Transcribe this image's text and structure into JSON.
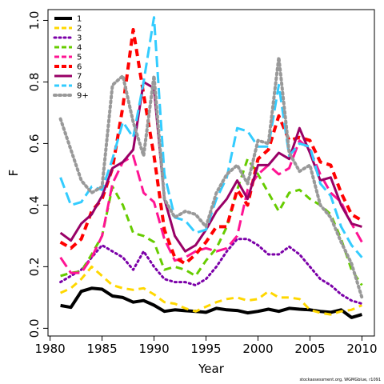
{
  "chart_data": {
    "type": "line",
    "xlabel": "Year",
    "ylabel": "F",
    "xlim": [
      1981,
      2010
    ],
    "ylim": [
      0,
      1.0
    ],
    "xticks": [
      1980,
      1985,
      1990,
      1995,
      2000,
      2005,
      2010
    ],
    "yticks": [
      0.0,
      0.2,
      0.4,
      0.6,
      0.8,
      1.0
    ],
    "xtick_labels": [
      "1980",
      "1985",
      "1990",
      "1995",
      "2000",
      "2005",
      "2010"
    ],
    "ytick_labels": [
      "0.0",
      "0.2",
      "0.4",
      "0.6",
      "0.8",
      "1.0"
    ],
    "grid": false,
    "legend_position": "top-left",
    "footnote": "stockassessment.org, WGMGblue, r1091",
    "x": [
      1981,
      1982,
      1983,
      1984,
      1985,
      1986,
      1987,
      1988,
      1989,
      1990,
      1991,
      1992,
      1993,
      1994,
      1995,
      1996,
      1997,
      1998,
      1999,
      2000,
      2001,
      2002,
      2003,
      2004,
      2005,
      2006,
      2007,
      2008,
      2009,
      2010
    ],
    "series": [
      {
        "name": "1",
        "color": "#000000",
        "dash": "solid",
        "width": 4,
        "values": [
          0.074,
          0.068,
          0.12,
          0.13,
          0.127,
          0.105,
          0.1,
          0.085,
          0.09,
          0.075,
          0.055,
          0.06,
          0.057,
          0.055,
          0.052,
          0.065,
          0.06,
          0.058,
          0.05,
          0.055,
          0.062,
          0.055,
          0.065,
          0.062,
          0.06,
          0.055,
          0.052,
          0.06,
          0.035,
          0.045
        ]
      },
      {
        "name": "2",
        "color": "#FFD700",
        "dash": "dashed",
        "width": 3,
        "values": [
          0.115,
          0.13,
          0.16,
          0.2,
          0.17,
          0.14,
          0.13,
          0.125,
          0.13,
          0.11,
          0.085,
          0.08,
          0.065,
          0.055,
          0.07,
          0.085,
          0.095,
          0.1,
          0.09,
          0.095,
          0.12,
          0.1,
          0.1,
          0.095,
          0.06,
          0.05,
          0.045,
          0.055,
          0.06,
          0.075
        ]
      },
      {
        "name": "3",
        "color": "#7B00A8",
        "dash": "dotted",
        "width": 3,
        "values": [
          0.15,
          0.17,
          0.19,
          0.23,
          0.27,
          0.25,
          0.23,
          0.19,
          0.25,
          0.2,
          0.16,
          0.15,
          0.15,
          0.14,
          0.16,
          0.2,
          0.25,
          0.29,
          0.29,
          0.27,
          0.24,
          0.24,
          0.265,
          0.24,
          0.2,
          0.16,
          0.14,
          0.11,
          0.09,
          0.08
        ]
      },
      {
        "name": "4",
        "color": "#66CC00",
        "dash": "dashed",
        "width": 3,
        "values": [
          0.17,
          0.18,
          0.185,
          0.24,
          0.3,
          0.46,
          0.4,
          0.31,
          0.3,
          0.28,
          0.19,
          0.2,
          0.19,
          0.17,
          0.22,
          0.26,
          0.33,
          0.45,
          0.55,
          0.5,
          0.44,
          0.38,
          0.44,
          0.45,
          0.42,
          0.4,
          0.37,
          0.29,
          0.19,
          0.14
        ]
      },
      {
        "name": "5",
        "color": "#FF1493",
        "dash": "longdash",
        "width": 3,
        "values": [
          0.23,
          0.18,
          0.18,
          0.23,
          0.3,
          0.47,
          0.54,
          0.56,
          0.44,
          0.41,
          0.29,
          0.22,
          0.23,
          0.25,
          0.26,
          0.25,
          0.26,
          0.3,
          0.45,
          0.5,
          0.53,
          0.5,
          0.52,
          0.61,
          0.58,
          0.5,
          0.44,
          0.41,
          0.34,
          0.28
        ]
      },
      {
        "name": "6",
        "color": "#FF0000",
        "dash": "dashed",
        "width": 4,
        "values": [
          0.28,
          0.26,
          0.29,
          0.38,
          0.42,
          0.52,
          0.72,
          0.97,
          0.76,
          0.56,
          0.32,
          0.23,
          0.21,
          0.24,
          0.28,
          0.33,
          0.33,
          0.45,
          0.4,
          0.55,
          0.58,
          0.69,
          0.61,
          0.62,
          0.61,
          0.54,
          0.53,
          0.44,
          0.37,
          0.35
        ]
      },
      {
        "name": "7",
        "color": "#990066",
        "dash": "solid",
        "width": 3,
        "values": [
          0.31,
          0.285,
          0.34,
          0.37,
          0.43,
          0.52,
          0.54,
          0.58,
          0.8,
          0.78,
          0.42,
          0.3,
          0.25,
          0.27,
          0.32,
          0.38,
          0.42,
          0.48,
          0.42,
          0.53,
          0.53,
          0.57,
          0.55,
          0.65,
          0.57,
          0.48,
          0.49,
          0.4,
          0.34,
          0.33
        ]
      },
      {
        "name": "8",
        "color": "#33CCFF",
        "dash": "longdash",
        "width": 3,
        "values": [
          0.49,
          0.4,
          0.41,
          0.46,
          0.45,
          0.55,
          0.67,
          0.62,
          0.8,
          1.01,
          0.5,
          0.36,
          0.35,
          0.31,
          0.32,
          0.42,
          0.49,
          0.65,
          0.64,
          0.59,
          0.59,
          0.79,
          0.56,
          0.6,
          0.59,
          0.47,
          0.43,
          0.33,
          0.27,
          0.23
        ]
      },
      {
        "name": "9+",
        "color": "#999999",
        "dash": "dotted",
        "width": 4,
        "values": [
          0.68,
          0.58,
          0.48,
          0.44,
          0.46,
          0.79,
          0.82,
          0.67,
          0.56,
          0.82,
          0.42,
          0.36,
          0.38,
          0.37,
          0.33,
          0.44,
          0.5,
          0.53,
          0.47,
          0.61,
          0.6,
          0.88,
          0.57,
          0.51,
          0.53,
          0.4,
          0.36,
          0.28,
          0.21,
          0.1
        ]
      }
    ]
  }
}
